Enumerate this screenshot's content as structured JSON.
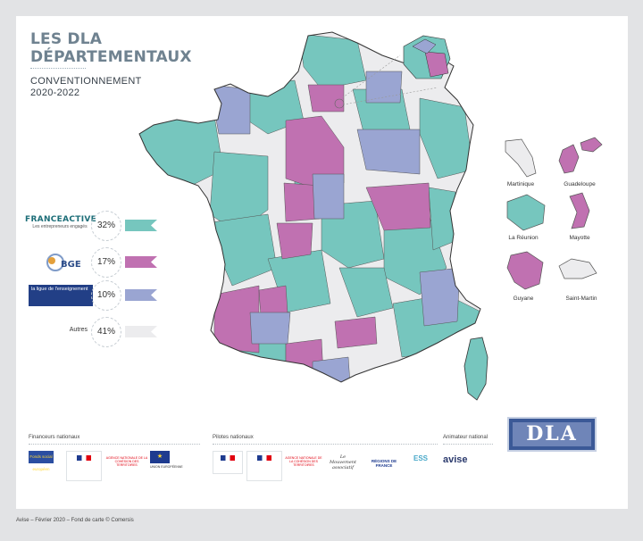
{
  "header": {
    "title_line1": "LES DLA",
    "title_line2": "DÉPARTEMENTAUX",
    "subtitle_line1": "CONVENTIONNEMENT",
    "subtitle_line2": "2020-2022"
  },
  "legend": [
    {
      "id": "franceactive",
      "brand": "FRANCEACTIVE",
      "brand_sub": "Les entrepreneurs engagés",
      "pct": "32%",
      "color": "#76c6be"
    },
    {
      "id": "bge",
      "brand": "BGE",
      "brand_sub": "",
      "pct": "17%",
      "color": "#c071b1"
    },
    {
      "id": "ligue",
      "brand": "la ligue de l'enseignement",
      "brand_sub": "",
      "pct": "10%",
      "color": "#9aa5d2"
    },
    {
      "id": "autres",
      "brand": "Autres",
      "brand_sub": "",
      "pct": "41%",
      "color": "#ececee"
    }
  ],
  "territories": [
    {
      "name": "Martinique",
      "status": "autres"
    },
    {
      "name": "Guadeloupe",
      "status": "bge"
    },
    {
      "name": "La Réunion",
      "status": "franceactive"
    },
    {
      "name": "Mayotte",
      "status": "bge"
    },
    {
      "name": "Guyane",
      "status": "bge"
    },
    {
      "name": "Saint-Martin",
      "status": "autres"
    }
  ],
  "footer": {
    "financeurs": "Financeurs nationaux",
    "pilotes": "Pilotes nationaux",
    "animateur": "Animateur national",
    "avise": "avise",
    "regions": "RÉGIONS DE FRANCE",
    "territoires": "AGENCE NATIONALE DE LA COHÉSION DES TERRITOIRES",
    "mouvement": "Le Mouvement associatif",
    "europe": "UNION EUROPÉENNE",
    "fse": "Fonds social européen"
  },
  "dla_logo": "DLA",
  "credits": "Avise – Février 2020 – Fond de carte © Comersis"
}
